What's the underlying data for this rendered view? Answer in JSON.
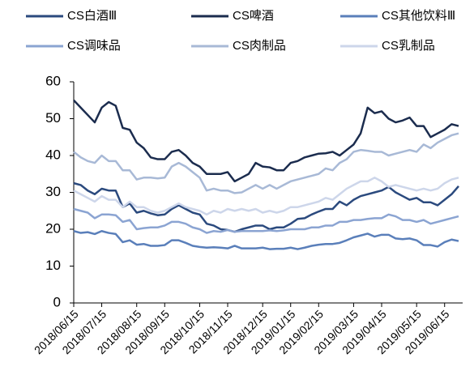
{
  "chart_data": {
    "type": "line",
    "categories": [
      "2018/06/15",
      null,
      null,
      null,
      "2018/07/15",
      null,
      null,
      null,
      null,
      "2018/08/15",
      null,
      null,
      null,
      "2018/09/15",
      null,
      null,
      null,
      null,
      "2018/10/15",
      null,
      null,
      null,
      "2018/11/15",
      null,
      null,
      null,
      null,
      "2018/12/15",
      null,
      null,
      null,
      "2019/01/15",
      null,
      null,
      null,
      "2019/02/15",
      null,
      null,
      null,
      null,
      "2019/03/15",
      null,
      null,
      null,
      "2019/04/15",
      null,
      null,
      null,
      null,
      "2019/05/15",
      null,
      null,
      null,
      "2019/06/15",
      null,
      null
    ],
    "series": [
      {
        "name": "CS白酒Ⅲ",
        "color": "#2b4a7e",
        "values": [
          32.5,
          32,
          30.5,
          29.5,
          31,
          30.5,
          30.5,
          26,
          27,
          24.5,
          25,
          24.3,
          23.8,
          24,
          25.5,
          26.5,
          25.5,
          24.5,
          24,
          21.5,
          21,
          20,
          19.8,
          19.3,
          20,
          20.5,
          21,
          21,
          20,
          20.5,
          20.5,
          21.5,
          22.8,
          23,
          24,
          24.8,
          25.5,
          25.5,
          27.5,
          26.5,
          28,
          29,
          29.5,
          30,
          30.5,
          31.5,
          30,
          29,
          28,
          28.5,
          27.3,
          27.3,
          26.5,
          28,
          29.5,
          31.7
        ]
      },
      {
        "name": "CS啤酒",
        "color": "#1b2c4e",
        "values": [
          55,
          53,
          51,
          49,
          53,
          54.5,
          53.5,
          47.5,
          47,
          43.5,
          42,
          39.5,
          39,
          39,
          41,
          41.5,
          40,
          38,
          37,
          35,
          35,
          35,
          35.5,
          33,
          34,
          35,
          38,
          37,
          36.8,
          36,
          36,
          38,
          38.5,
          39.5,
          40,
          40.5,
          40.6,
          41,
          40,
          41.5,
          43,
          46,
          53,
          51.5,
          52,
          50,
          49,
          49.5,
          50.3,
          48,
          48,
          45,
          46,
          47,
          48.5,
          48
        ]
      },
      {
        "name": "CS其他饮料Ⅲ",
        "color": "#5a7fba",
        "values": [
          19.5,
          19,
          19.2,
          18.7,
          19.5,
          19,
          18.7,
          16.5,
          17,
          15.8,
          16,
          15.5,
          15.5,
          15.7,
          17,
          17,
          16.3,
          15.5,
          15.2,
          15,
          15.1,
          15,
          14.8,
          15.5,
          14.8,
          14.8,
          14.8,
          15,
          14.6,
          14.7,
          14.7,
          15,
          14.6,
          15,
          15.5,
          15.8,
          16,
          16,
          16.3,
          17,
          17.8,
          18.3,
          18.8,
          18,
          18.5,
          18.5,
          17.5,
          17.3,
          17.5,
          17,
          15.7,
          15.7,
          15.3,
          16.5,
          17.2,
          16.8
        ]
      },
      {
        "name": "CS调味品",
        "color": "#8ba4d2",
        "values": [
          25.5,
          25,
          24.5,
          23,
          24,
          24,
          23.8,
          22,
          22.5,
          20,
          20.3,
          20.5,
          20.5,
          21,
          22,
          22,
          21.5,
          20.5,
          20,
          19,
          19.5,
          19.3,
          19.8,
          19.3,
          19.5,
          19.5,
          19.5,
          19.5,
          19.7,
          19.5,
          19.7,
          20,
          20,
          20,
          20.5,
          20.5,
          21,
          21,
          22,
          22,
          22.5,
          22.5,
          22.8,
          23,
          23,
          24,
          23.5,
          22.5,
          22.5,
          22,
          22.5,
          21.5,
          22,
          22.5,
          23,
          23.5
        ]
      },
      {
        "name": "CS肉制品",
        "color": "#a8b9d6",
        "values": [
          41,
          39.5,
          38.5,
          38,
          40,
          38.5,
          38.5,
          36,
          36,
          33.5,
          34,
          34,
          33.8,
          34,
          37,
          38,
          37,
          35.5,
          34,
          30.5,
          31,
          30.5,
          30.5,
          29.8,
          30,
          31,
          32,
          31,
          32,
          31,
          32,
          33,
          33.5,
          34,
          34.5,
          35,
          36.5,
          36,
          38,
          39,
          41,
          41.5,
          41.3,
          41,
          41,
          40,
          40.5,
          41,
          41.5,
          41,
          43,
          42,
          43.5,
          44.5,
          45.5,
          46
        ]
      },
      {
        "name": "CS乳制品",
        "color": "#cdd6ea",
        "values": [
          30.5,
          29.5,
          28.5,
          27.5,
          29,
          28,
          28,
          26,
          27.5,
          26,
          26,
          25,
          24.5,
          25,
          26,
          27,
          26,
          25.5,
          25,
          24,
          25,
          24.5,
          25.5,
          25,
          25.5,
          25,
          25.5,
          24.5,
          25,
          24.5,
          25,
          26,
          26,
          26.5,
          27,
          27.5,
          28.5,
          28,
          29.5,
          31,
          32,
          33,
          33,
          34,
          33,
          31.5,
          32,
          31.5,
          31,
          30.5,
          31,
          30.5,
          31,
          32.5,
          33.5,
          34
        ]
      }
    ],
    "ylim": [
      0,
      60
    ],
    "yticks": [
      0,
      10,
      20,
      30,
      40,
      50,
      60
    ]
  }
}
